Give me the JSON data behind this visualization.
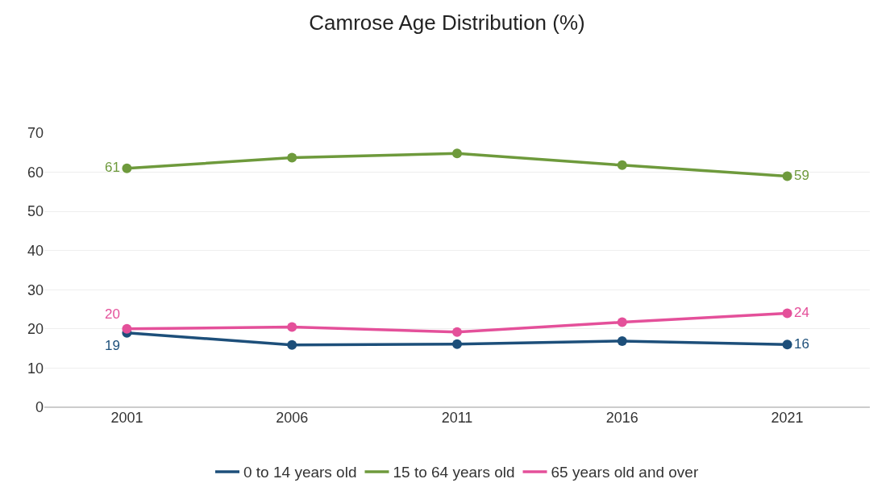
{
  "chart_data": {
    "type": "line",
    "title": "Camrose Age Distribution (%)",
    "categories": [
      "2001",
      "2006",
      "2011",
      "2016",
      "2021"
    ],
    "series": [
      {
        "name": "0 to 14 years old",
        "color": "#1d4f7a",
        "values": [
          19,
          15.9,
          16.1,
          16.9,
          16
        ],
        "value_labels": [
          "19",
          null,
          null,
          null,
          "16"
        ]
      },
      {
        "name": "15 to 64 years old",
        "color": "#6e9a3c",
        "values": [
          61,
          63.7,
          64.8,
          61.8,
          59
        ],
        "value_labels": [
          "61",
          null,
          null,
          null,
          "59"
        ]
      },
      {
        "name": "65 years old and over",
        "color": "#e4509a",
        "values": [
          20,
          20.5,
          19.2,
          21.7,
          24
        ],
        "value_labels": [
          "20",
          null,
          null,
          null,
          "24"
        ]
      }
    ],
    "ylim": [
      0,
      70
    ],
    "yticks": [
      0,
      10,
      20,
      30,
      40,
      50,
      60,
      70
    ],
    "grid": "y",
    "legend": "bottom",
    "marker": "circle",
    "line_style": "solid"
  }
}
